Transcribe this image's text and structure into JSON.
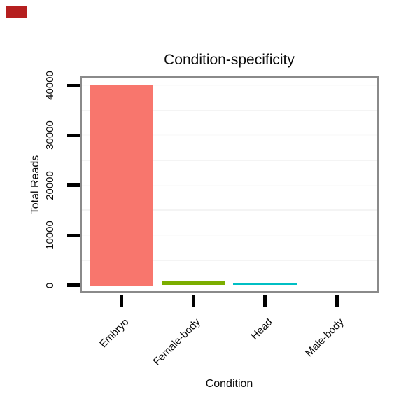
{
  "window": {
    "corner_marker_color": "#b51f1f"
  },
  "chart_data": {
    "type": "bar",
    "title": "Condition-specificity",
    "xlabel": "Condition",
    "ylabel": "Total Reads",
    "categories": [
      "Embryo",
      "Female-body",
      "Head",
      "Male-body"
    ],
    "values": [
      40000,
      850,
      500,
      0
    ],
    "bar_colors": [
      "#F8766D",
      "#7CAE00",
      "#00BFC4",
      "#C77CFF"
    ],
    "ylim": [
      0,
      40000
    ],
    "yticks": [
      0,
      10000,
      20000,
      30000,
      40000
    ],
    "ytick_labels": [
      "0",
      "10000",
      "20000",
      "30000",
      "40000"
    ],
    "grid": {
      "minor_horizontal": true,
      "minor_color": "#f4f4f4",
      "major_color": "#fbfbfb"
    },
    "legend": "none",
    "panel_border_color": "#8a8a8a",
    "tick_color": "#000000",
    "text_color": "#0a0a0a"
  }
}
